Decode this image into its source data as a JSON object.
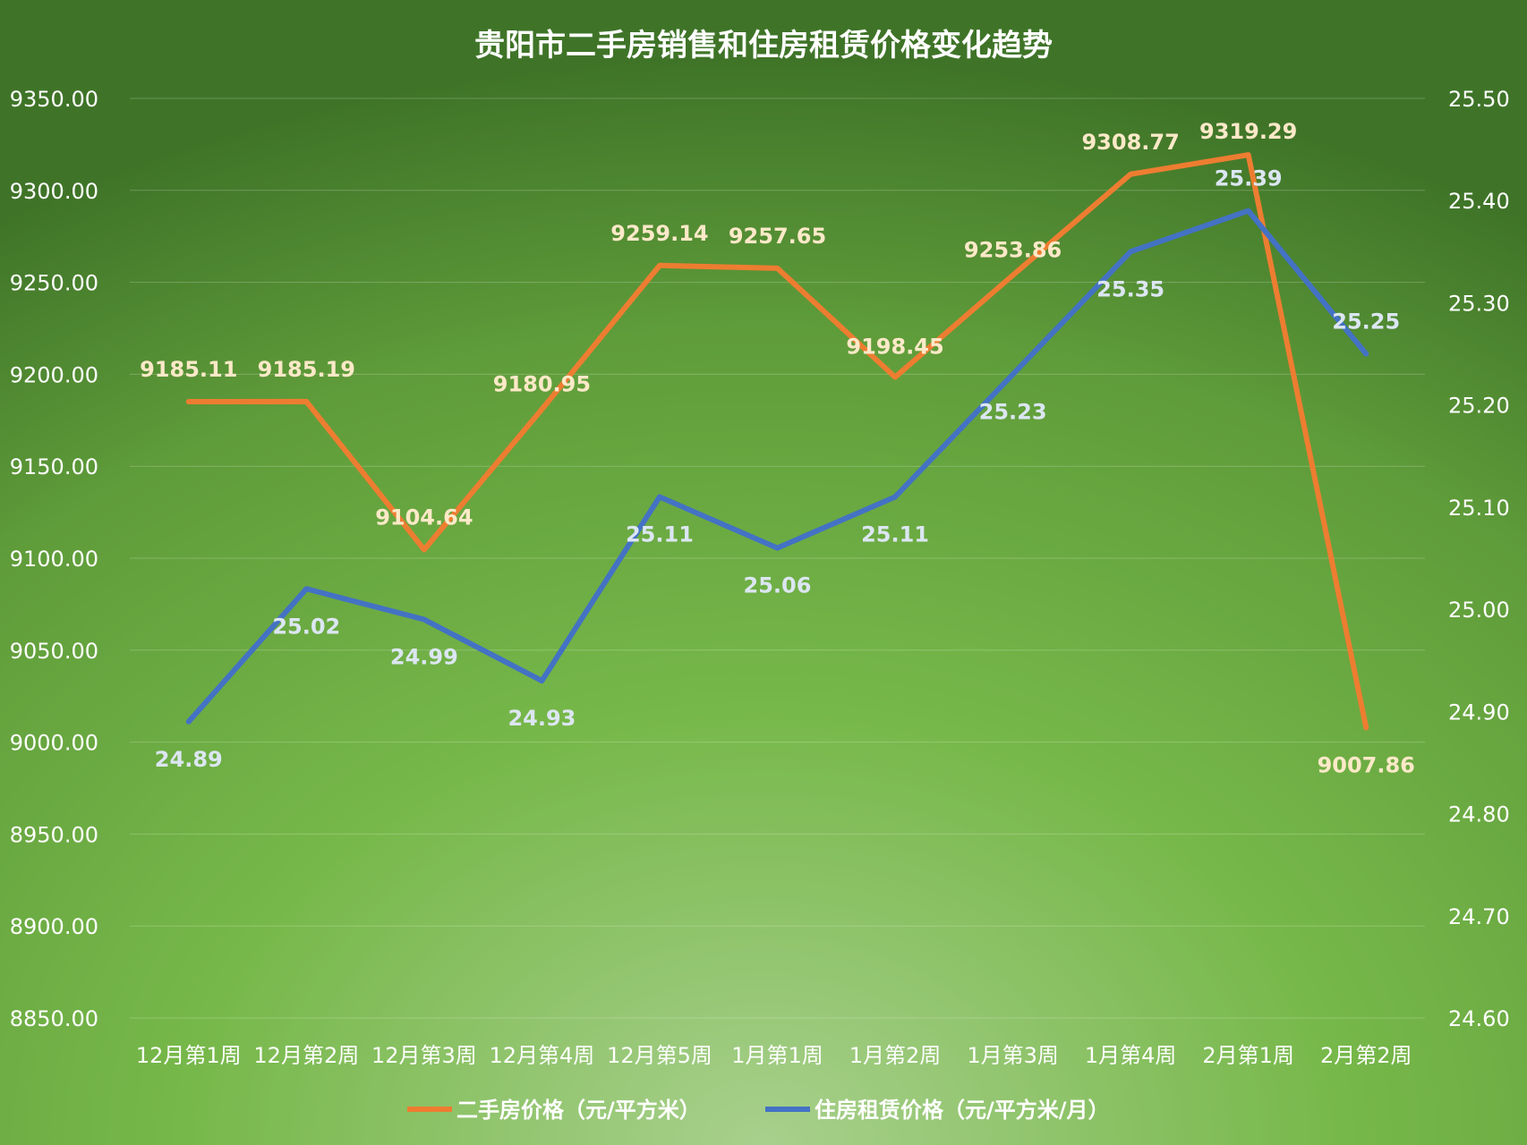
{
  "chart_data": {
    "type": "line",
    "title": "贵阳市二手房销售和住房租赁价格变化趋势",
    "categories": [
      "12月第1周",
      "12月第2周",
      "12月第3周",
      "12月第4周",
      "12月第5周",
      "1月第1周",
      "1月第2周",
      "1月第3周",
      "1月第4周",
      "2月第1周",
      "2月第2周"
    ],
    "y_left": {
      "ticks": [
        "8850.00",
        "8900.00",
        "8950.00",
        "9000.00",
        "9050.00",
        "9100.00",
        "9150.00",
        "9200.00",
        "9250.00",
        "9300.00",
        "9350.00"
      ],
      "range": [
        8850,
        9350
      ]
    },
    "y_right": {
      "ticks": [
        "24.60",
        "24.70",
        "24.80",
        "24.90",
        "25.00",
        "25.10",
        "25.20",
        "25.30",
        "25.40",
        "25.50"
      ],
      "range": [
        24.6,
        25.5
      ]
    },
    "grid": true,
    "legend_position": "bottom",
    "series": [
      {
        "name": "二手房价格（元/平方米）",
        "axis": "left",
        "color": "#ED7D31",
        "label_color": "#FDE9C8",
        "values": [
          9185.11,
          9185.19,
          9104.64,
          9180.95,
          9259.14,
          9257.65,
          9198.45,
          9253.86,
          9308.77,
          9319.29,
          9007.86
        ],
        "labels": [
          "9185.11",
          "9185.19",
          "9104.64",
          "9180.95",
          "9259.14",
          "9257.65",
          "9198.45",
          "9253.86",
          "9308.77",
          "9319.29",
          "9007.86"
        ]
      },
      {
        "name": "住房租赁价格（元/平方米/月）",
        "axis": "right",
        "color": "#4472C4",
        "label_color": "#DCE6F2",
        "values": [
          24.89,
          25.02,
          24.99,
          24.93,
          25.11,
          25.06,
          25.11,
          25.23,
          25.35,
          25.39,
          25.25
        ],
        "labels": [
          "24.89",
          "25.02",
          "24.99",
          "24.93",
          "25.11",
          "25.06",
          "25.11",
          "25.23",
          "25.35",
          "25.39",
          "25.25"
        ]
      }
    ]
  }
}
